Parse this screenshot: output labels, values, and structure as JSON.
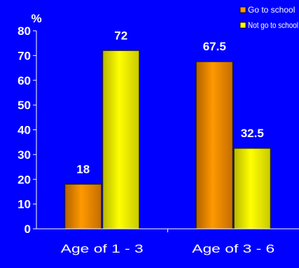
{
  "chart_data": {
    "type": "bar",
    "categories": [
      "Age of 1 - 3",
      "Age of 3 - 6"
    ],
    "series": [
      {
        "name": "Go to school",
        "values": [
          18,
          67.5
        ],
        "color": "#ff9900"
      },
      {
        "name": "Not go to school",
        "values": [
          72,
          32.5
        ],
        "color": "#ffff00"
      }
    ],
    "data_labels": [
      [
        "18",
        "67.5"
      ],
      [
        "72",
        "32.5"
      ]
    ],
    "ylabel": "%",
    "ylim": [
      0,
      80
    ],
    "yticks": [
      0,
      10,
      20,
      30,
      40,
      50,
      60,
      70,
      80
    ],
    "grid": false,
    "legend": "top-right",
    "background": "#0000ff"
  }
}
